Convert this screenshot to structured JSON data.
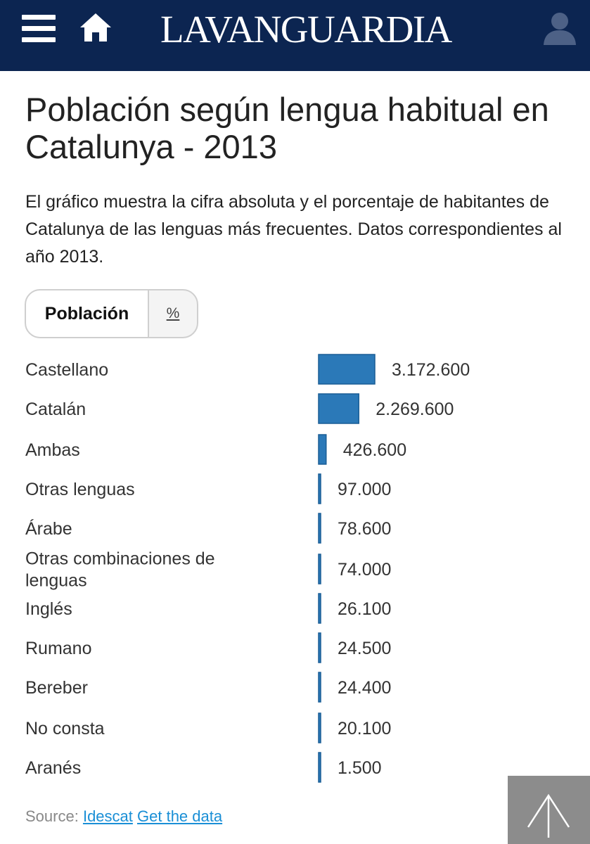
{
  "header": {
    "logo": "LAVANGUARDIA",
    "bg_color": "#0c2551",
    "icons": [
      "menu-icon",
      "home-icon",
      "user-icon"
    ]
  },
  "article": {
    "title": "Población según lengua habitual en Catalunya - 2013",
    "description": "El gráfico muestra la cifra absoluta y el porcentaje de habitantes de Catalunya de las lenguas más frecuentes. Datos correspondientes al año 2013."
  },
  "toggle": {
    "options": [
      "Población",
      "%"
    ],
    "selected": "Población"
  },
  "chart_data": {
    "type": "bar",
    "orientation": "horizontal",
    "bar_color": "#2b79b8",
    "categories": [
      "Castellano",
      "Catalán",
      "Ambas",
      "Otras lenguas",
      "Árabe",
      "Otras combinaciones de lenguas",
      "Inglés",
      "Rumano",
      "Bereber",
      "No consta",
      "Aranés"
    ],
    "values": [
      3172600,
      2269600,
      426600,
      97000,
      78600,
      74000,
      26100,
      24500,
      24400,
      20100,
      1500
    ],
    "value_labels": [
      "3.172.600",
      "2.269.600",
      "426.600",
      "97.000",
      "78.600",
      "74.000",
      "26.100",
      "24.500",
      "24.400",
      "20.100",
      "1.500"
    ]
  },
  "source": {
    "prefix": "Source:",
    "source_link": "Idescat",
    "data_link": "Get the data"
  },
  "scroll_top": {
    "icon": "arrow-up-icon"
  }
}
